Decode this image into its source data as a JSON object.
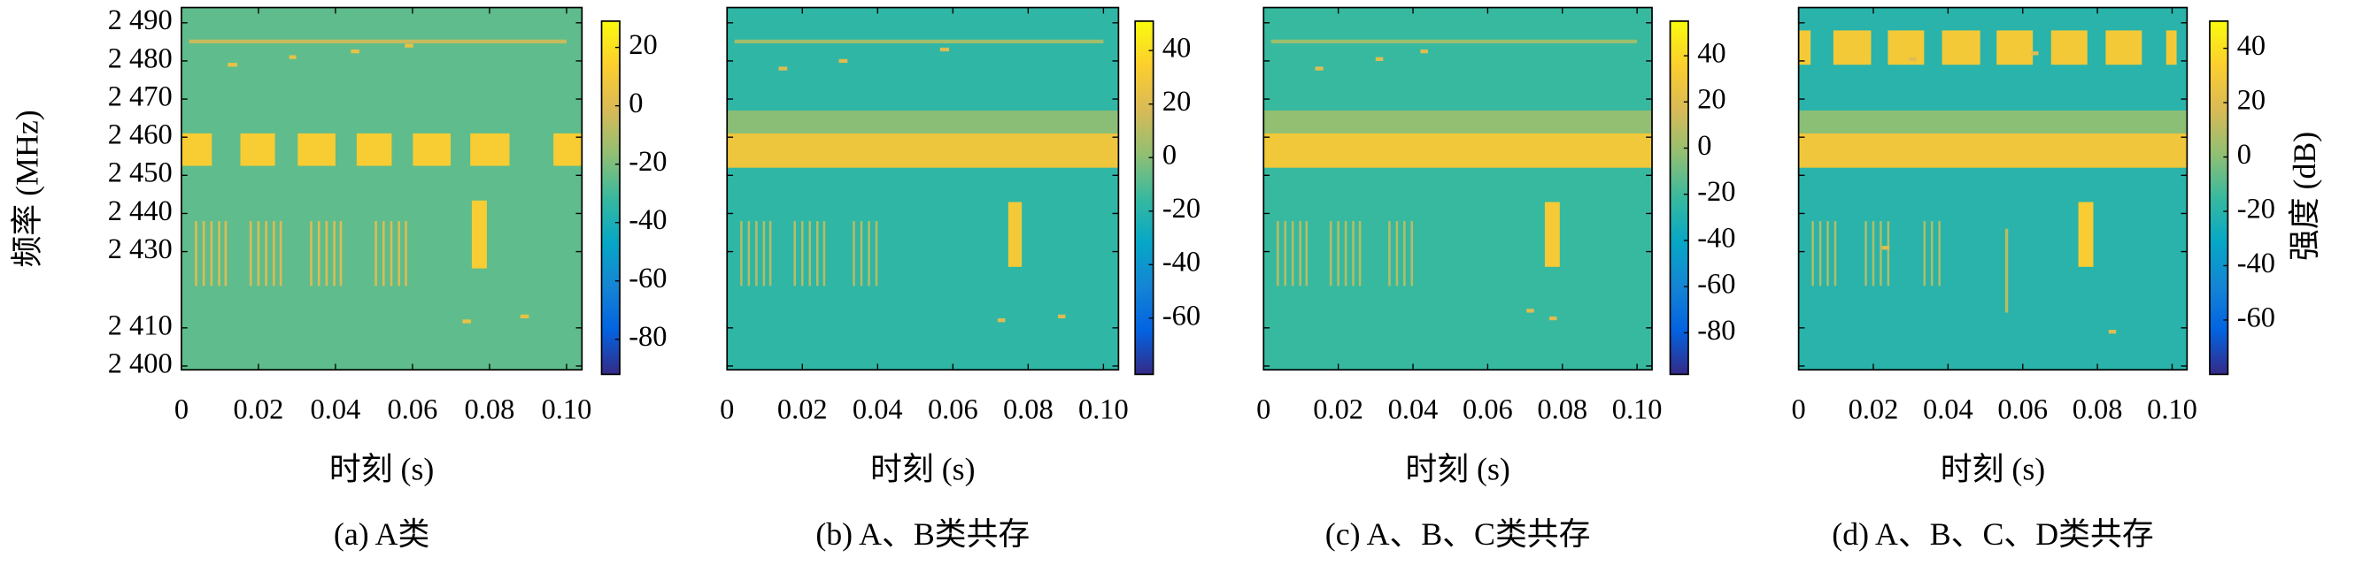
{
  "chart_data": [
    {
      "type": "heatmap",
      "caption": "(a) A类",
      "xlabel": "时刻 (s)",
      "ylabel": "频率 (MHz)",
      "xlim": [
        0,
        0.104
      ],
      "xticks": [
        0,
        0.02,
        0.04,
        0.06,
        0.08,
        {
          "value": 0.1,
          "label": "0.10"
        }
      ],
      "ylim": [
        2399,
        2494
      ],
      "yticks": [
        {
          "value": 2400,
          "label": "2 400"
        },
        {
          "value": 2410,
          "label": "2 410"
        },
        {
          "value": 2430,
          "label": "2 430"
        },
        {
          "value": 2440,
          "label": "2 440"
        },
        {
          "value": 2450,
          "label": "2 450"
        },
        {
          "value": 2460,
          "label": "2 460"
        },
        {
          "value": 2470,
          "label": "2 470"
        },
        {
          "value": 2480,
          "label": "2 480"
        },
        {
          "value": 2490,
          "label": "2 490"
        }
      ],
      "clim": [
        -92,
        29
      ],
      "cticks": [
        -80,
        -60,
        -40,
        -20,
        0,
        20
      ],
      "colormap": [
        "#352a87",
        "#0363e1",
        "#1485d4",
        "#06a7c6",
        "#38b99e",
        "#92bf73",
        "#d9ba56",
        "#fcce2e",
        "#f9fb0e"
      ],
      "background": -25,
      "signals": [
        [
          0,
          0.0079,
          2452.5,
          2461,
          12
        ],
        [
          0.0153,
          0.0243,
          2452.5,
          2461,
          12
        ],
        [
          0.0302,
          0.04,
          2452.5,
          2461,
          12
        ],
        [
          0.0455,
          0.0546,
          2452.5,
          2461,
          12
        ],
        [
          0.0601,
          0.0699,
          2452.5,
          2461,
          12
        ],
        [
          0.075,
          0.0852,
          2452.5,
          2461,
          12
        ],
        [
          0.0966,
          0.104,
          2452.5,
          2461,
          12
        ],
        [
          0.002,
          0.1,
          2484.6,
          2485.6,
          -5
        ],
        [
          0.0035,
          0.0041,
          2421,
          2438,
          0
        ],
        [
          0.0055,
          0.0061,
          2421,
          2438,
          0
        ],
        [
          0.0075,
          0.0081,
          2421,
          2438,
          0
        ],
        [
          0.0095,
          0.0101,
          2421,
          2438,
          0
        ],
        [
          0.0112,
          0.0118,
          2421,
          2438,
          0
        ],
        [
          0.0177,
          0.0183,
          2421,
          2438,
          0
        ],
        [
          0.0197,
          0.0203,
          2421,
          2438,
          0
        ],
        [
          0.0217,
          0.0223,
          2421,
          2438,
          0
        ],
        [
          0.0237,
          0.0243,
          2421,
          2438,
          0
        ],
        [
          0.0255,
          0.0261,
          2421,
          2438,
          0
        ],
        [
          0.0334,
          0.034,
          2421,
          2438,
          0
        ],
        [
          0.0354,
          0.036,
          2421,
          2438,
          0
        ],
        [
          0.0374,
          0.038,
          2421,
          2438,
          0
        ],
        [
          0.0394,
          0.04,
          2421,
          2438,
          0
        ],
        [
          0.0411,
          0.0417,
          2421,
          2438,
          0
        ],
        [
          0.0502,
          0.0508,
          2421,
          2438,
          0
        ],
        [
          0.0522,
          0.0528,
          2421,
          2438,
          0
        ],
        [
          0.0542,
          0.0548,
          2421,
          2438,
          0
        ],
        [
          0.0562,
          0.0568,
          2421,
          2438,
          0
        ],
        [
          0.058,
          0.0586,
          2421,
          2438,
          0
        ],
        [
          0.0754,
          0.0793,
          2425.6,
          2443.4,
          12
        ],
        [
          0.012,
          0.0145,
          2478.5,
          2479.5,
          5
        ],
        [
          0.028,
          0.0298,
          2480.5,
          2481.5,
          5
        ],
        [
          0.044,
          0.0462,
          2482,
          2483,
          5
        ],
        [
          0.058,
          0.0602,
          2483.5,
          2484.5,
          5
        ],
        [
          0.073,
          0.0752,
          2411.2,
          2412.2,
          5
        ],
        [
          0.088,
          0.0902,
          2412.5,
          2413.5,
          5
        ]
      ]
    },
    {
      "type": "heatmap",
      "caption": "(b) A、B类共存",
      "xlabel": "时刻 (s)",
      "xlim": [
        0,
        0.104
      ],
      "xticks": [
        0,
        0.02,
        0.04,
        0.06,
        0.08,
        {
          "value": 0.1,
          "label": "0.10"
        }
      ],
      "ylim": [
        2399,
        2494
      ],
      "clim": [
        -81,
        51
      ],
      "cticks": [
        -60,
        -40,
        -20,
        0,
        20,
        40
      ],
      "colormap": [
        "#352a87",
        "#0363e1",
        "#1485d4",
        "#06a7c6",
        "#38b99e",
        "#92bf73",
        "#d9ba56",
        "#fcce2e",
        "#f9fb0e"
      ],
      "background": -18,
      "signals": [
        [
          0,
          0.104,
          2461,
          2467,
          0
        ],
        [
          0,
          0.104,
          2452,
          2461,
          28
        ],
        [
          0.002,
          0.1,
          2484.6,
          2485.6,
          5
        ],
        [
          0.0035,
          0.0041,
          2421,
          2438,
          10
        ],
        [
          0.0055,
          0.0061,
          2421,
          2438,
          10
        ],
        [
          0.0075,
          0.0081,
          2421,
          2438,
          10
        ],
        [
          0.0095,
          0.0101,
          2421,
          2438,
          10
        ],
        [
          0.0112,
          0.0118,
          2421,
          2438,
          10
        ],
        [
          0.0177,
          0.0183,
          2421,
          2438,
          10
        ],
        [
          0.0197,
          0.0203,
          2421,
          2438,
          10
        ],
        [
          0.0217,
          0.0223,
          2421,
          2438,
          10
        ],
        [
          0.0237,
          0.0243,
          2421,
          2438,
          10
        ],
        [
          0.0255,
          0.0261,
          2421,
          2438,
          10
        ],
        [
          0.0334,
          0.034,
          2421,
          2438,
          10
        ],
        [
          0.0354,
          0.036,
          2421,
          2438,
          10
        ],
        [
          0.0374,
          0.038,
          2421,
          2438,
          10
        ],
        [
          0.0394,
          0.04,
          2421,
          2438,
          10
        ],
        [
          0.0747,
          0.0783,
          2426,
          2443,
          30
        ],
        [
          0.0137,
          0.016,
          2477.5,
          2478.5,
          20
        ],
        [
          0.0297,
          0.032,
          2479.5,
          2480.5,
          20
        ],
        [
          0.0566,
          0.059,
          2482.5,
          2483.5,
          20
        ],
        [
          0.0719,
          0.0739,
          2411.5,
          2412.5,
          20
        ],
        [
          0.0879,
          0.0899,
          2412.5,
          2413.5,
          20
        ]
      ]
    },
    {
      "type": "heatmap",
      "caption": "(c) A、B、C类共存",
      "xlabel": "时刻 (s)",
      "xlim": [
        0,
        0.104
      ],
      "xticks": [
        0,
        0.02,
        0.04,
        0.06,
        0.08,
        {
          "value": 0.1,
          "label": "0.10"
        }
      ],
      "ylim": [
        2399,
        2494
      ],
      "clim": [
        -98,
        55
      ],
      "cticks": [
        -80,
        -60,
        -40,
        -20,
        0,
        20,
        40
      ],
      "colormap": [
        "#352a87",
        "#0363e1",
        "#1485d4",
        "#06a7c6",
        "#38b99e",
        "#92bf73",
        "#d9ba56",
        "#fcce2e",
        "#f9fb0e"
      ],
      "background": -22,
      "signals": [
        [
          0,
          0.104,
          2461,
          2467,
          -2
        ],
        [
          0,
          0.104,
          2452,
          2461,
          30
        ],
        [
          0.002,
          0.1,
          2484.6,
          2485.6,
          0
        ],
        [
          0.0035,
          0.0041,
          2421,
          2438,
          8
        ],
        [
          0.0055,
          0.0061,
          2421,
          2438,
          8
        ],
        [
          0.0075,
          0.0081,
          2421,
          2438,
          8
        ],
        [
          0.0095,
          0.0101,
          2421,
          2438,
          8
        ],
        [
          0.0112,
          0.0118,
          2421,
          2438,
          8
        ],
        [
          0.0177,
          0.0183,
          2421,
          2438,
          8
        ],
        [
          0.0197,
          0.0203,
          2421,
          2438,
          8
        ],
        [
          0.0217,
          0.0223,
          2421,
          2438,
          8
        ],
        [
          0.0237,
          0.0243,
          2421,
          2438,
          8
        ],
        [
          0.0255,
          0.0261,
          2421,
          2438,
          8
        ],
        [
          0.0334,
          0.034,
          2421,
          2438,
          8
        ],
        [
          0.0354,
          0.036,
          2421,
          2438,
          8
        ],
        [
          0.0374,
          0.038,
          2421,
          2438,
          8
        ],
        [
          0.0394,
          0.04,
          2421,
          2438,
          8
        ],
        [
          0.0753,
          0.0793,
          2426,
          2443,
          32
        ],
        [
          0.0138,
          0.016,
          2477.5,
          2478.5,
          20
        ],
        [
          0.03,
          0.032,
          2480,
          2481,
          20
        ],
        [
          0.042,
          0.044,
          2482,
          2483,
          20
        ],
        [
          0.0704,
          0.0724,
          2414,
          2415,
          20
        ],
        [
          0.0765,
          0.0785,
          2412,
          2413,
          20
        ]
      ]
    },
    {
      "type": "heatmap",
      "caption": "(d) A、B、C、D类共存",
      "xlabel": "时刻 (s)",
      "xlim": [
        0,
        0.104
      ],
      "xticks": [
        0,
        0.02,
        0.04,
        0.06,
        0.08,
        {
          "value": 0.1,
          "label": "0.10"
        }
      ],
      "ylim": [
        2399,
        2494
      ],
      "clim": [
        -80,
        50
      ],
      "cticks": [
        -60,
        -40,
        -20,
        0,
        20,
        40
      ],
      "clabel": "强度 (dB)",
      "colormap": [
        "#352a87",
        "#0363e1",
        "#1485d4",
        "#06a7c6",
        "#38b99e",
        "#92bf73",
        "#d9ba56",
        "#fcce2e",
        "#f9fb0e"
      ],
      "background": -20,
      "signals": [
        [
          0,
          0.104,
          2461,
          2467,
          0
        ],
        [
          0,
          0.104,
          2452,
          2461,
          28
        ],
        [
          0,
          0.0032,
          2479,
          2488,
          30
        ],
        [
          0.0093,
          0.0194,
          2479,
          2488,
          30
        ],
        [
          0.0239,
          0.0336,
          2479,
          2488,
          30
        ],
        [
          0.0384,
          0.0486,
          2479,
          2488,
          30
        ],
        [
          0.053,
          0.0627,
          2479,
          2488,
          30
        ],
        [
          0.0676,
          0.0773,
          2479,
          2488,
          30
        ],
        [
          0.0822,
          0.0919,
          2479,
          2488,
          30
        ],
        [
          0.0984,
          0.1012,
          2479,
          2488,
          30
        ],
        [
          0.0035,
          0.0041,
          2421,
          2438,
          8
        ],
        [
          0.0055,
          0.0061,
          2421,
          2438,
          8
        ],
        [
          0.0075,
          0.0081,
          2421,
          2438,
          8
        ],
        [
          0.0095,
          0.0101,
          2421,
          2438,
          8
        ],
        [
          0.0177,
          0.0183,
          2421,
          2438,
          8
        ],
        [
          0.0197,
          0.0203,
          2421,
          2438,
          8
        ],
        [
          0.0217,
          0.0223,
          2421,
          2438,
          8
        ],
        [
          0.0237,
          0.0243,
          2421,
          2438,
          8
        ],
        [
          0.0334,
          0.034,
          2421,
          2438,
          8
        ],
        [
          0.0354,
          0.036,
          2421,
          2438,
          8
        ],
        [
          0.0374,
          0.038,
          2421,
          2438,
          8
        ],
        [
          0.0553,
          0.0561,
          2414,
          2436,
          10
        ],
        [
          0.0749,
          0.0789,
          2426,
          2443,
          32
        ],
        [
          0.0223,
          0.0243,
          2430.5,
          2431.5,
          20
        ],
        [
          0.0296,
          0.0316,
          2480,
          2481,
          20
        ],
        [
          0.0622,
          0.0642,
          2481.5,
          2482.5,
          20
        ],
        [
          0.083,
          0.085,
          2408.5,
          2409.5,
          20
        ]
      ]
    }
  ]
}
